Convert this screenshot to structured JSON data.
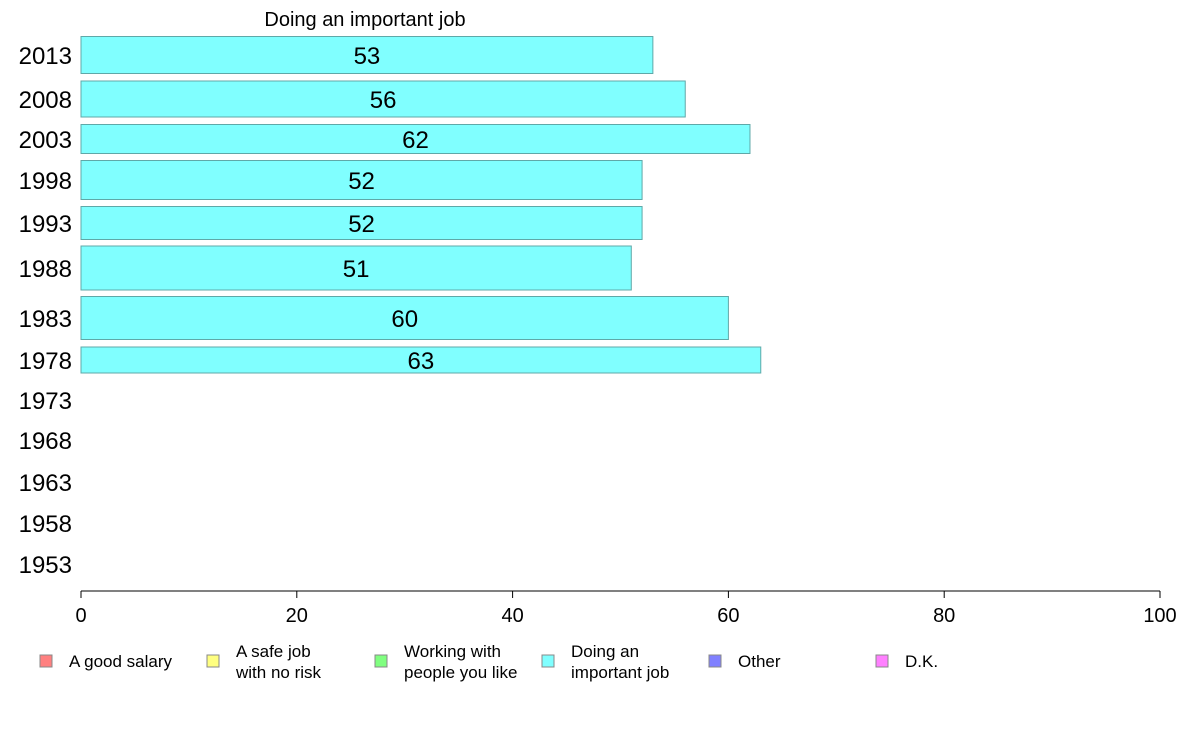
{
  "chart_data": {
    "type": "bar",
    "orientation": "horizontal",
    "title": "Doing an important job",
    "categories": [
      "2013",
      "2008",
      "2003",
      "1998",
      "1993",
      "1988",
      "1983",
      "1978",
      "1973",
      "1968",
      "1963",
      "1958",
      "1953"
    ],
    "series": [
      {
        "name": "Doing an important job",
        "values": [
          53,
          56,
          62,
          52,
          52,
          51,
          60,
          63,
          null,
          null,
          null,
          null,
          null
        ]
      }
    ],
    "xlim": [
      0,
      100
    ],
    "xticks": [
      0,
      20,
      40,
      60,
      80,
      100
    ],
    "grid": false,
    "legend_position": "bottom",
    "legend": [
      {
        "label": "A good salary",
        "color": "#ff8080"
      },
      {
        "label": "A safe job\nwith no risk",
        "color": "#ffff80"
      },
      {
        "label": "Working with\npeople you like",
        "color": "#80ff80"
      },
      {
        "label": "Doing an\nimportant job",
        "color": "#80ffff"
      },
      {
        "label": "Other",
        "color": "#8080ff"
      },
      {
        "label": "D.K.",
        "color": "#ff80ff"
      }
    ],
    "bar_color": "#80ffff",
    "bar_stroke": "#5fa8a8"
  }
}
